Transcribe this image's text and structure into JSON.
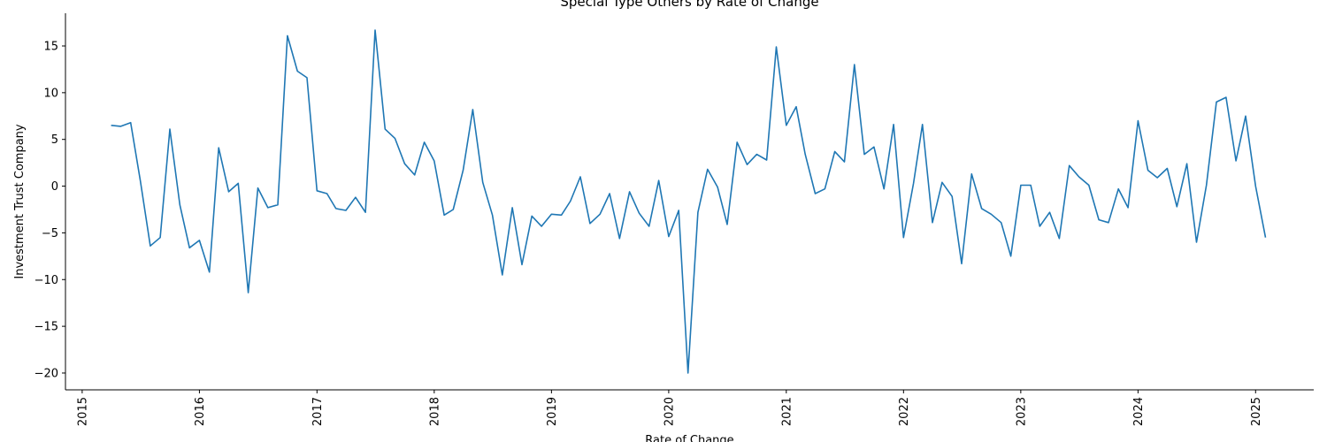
{
  "chart_data": {
    "type": "line",
    "title": "Special Type Others by Rate of Change",
    "xlabel": "Rate of Change",
    "ylabel": "Investment Trust Company",
    "xlim": [
      "2014-11-10",
      "2025-07-01"
    ],
    "ylim": [
      -21.8,
      18.5
    ],
    "x_ticks": [
      "2015",
      "2016",
      "2017",
      "2018",
      "2019",
      "2020",
      "2021",
      "2022",
      "2023",
      "2024",
      "2025"
    ],
    "y_ticks": [
      -20,
      -15,
      -10,
      -5,
      0,
      5,
      10,
      15
    ],
    "y_tick_labels": [
      "−20",
      "−15",
      "−10",
      "−5",
      "0",
      "5",
      "10",
      "15"
    ],
    "grid": false,
    "color": "#1f77b4",
    "series": [
      {
        "x": [
          "2015-04",
          "2015-05",
          "2015-06",
          "2015-07",
          "2015-08",
          "2015-09",
          "2015-10",
          "2015-11",
          "2015-12",
          "2016-01",
          "2016-02",
          "2016-03",
          "2016-04",
          "2016-05",
          "2016-06",
          "2016-07",
          "2016-08",
          "2016-09",
          "2016-10",
          "2016-11",
          "2016-12",
          "2017-01",
          "2017-02",
          "2017-03",
          "2017-04",
          "2017-05",
          "2017-06",
          "2017-07",
          "2017-08",
          "2017-09",
          "2017-10",
          "2017-11",
          "2017-12",
          "2018-01",
          "2018-02",
          "2018-03",
          "2018-04",
          "2018-05",
          "2018-06",
          "2018-07",
          "2018-08",
          "2018-09",
          "2018-10",
          "2018-11",
          "2018-12",
          "2019-01",
          "2019-02",
          "2019-03",
          "2019-04",
          "2019-05",
          "2019-06",
          "2019-07",
          "2019-08",
          "2019-09",
          "2019-10",
          "2019-11",
          "2019-12",
          "2020-01",
          "2020-02",
          "2020-03",
          "2020-04",
          "2020-05",
          "2020-06",
          "2020-07",
          "2020-08",
          "2020-09",
          "2020-10",
          "2020-11",
          "2020-12",
          "2021-01",
          "2021-02",
          "2021-03",
          "2021-04",
          "2021-05",
          "2021-06",
          "2021-07",
          "2021-08",
          "2021-09",
          "2021-10",
          "2021-11",
          "2021-12",
          "2022-01",
          "2022-02",
          "2022-03",
          "2022-04",
          "2022-05",
          "2022-06",
          "2022-07",
          "2022-08",
          "2022-09",
          "2022-10",
          "2022-11",
          "2022-12",
          "2023-01",
          "2023-02",
          "2023-03",
          "2023-04",
          "2023-05",
          "2023-06",
          "2023-07",
          "2023-08",
          "2023-09",
          "2023-10",
          "2023-11",
          "2023-12",
          "2024-01",
          "2024-02",
          "2024-03",
          "2024-04",
          "2024-05",
          "2024-06",
          "2024-07",
          "2024-08",
          "2024-09",
          "2024-10",
          "2024-11",
          "2024-12",
          "2025-01",
          "2025-02"
        ],
        "values": [
          6.5,
          6.4,
          6.8,
          0.6,
          -6.4,
          -5.5,
          6.1,
          -2.0,
          -6.6,
          -5.8,
          -9.2,
          4.1,
          -0.6,
          0.3,
          -11.4,
          -0.2,
          -2.3,
          -2.0,
          16.1,
          12.3,
          11.6,
          -0.5,
          -0.8,
          -2.4,
          -2.6,
          -1.2,
          -2.8,
          16.7,
          6.1,
          5.1,
          2.4,
          1.2,
          4.7,
          2.7,
          -3.1,
          -2.5,
          1.7,
          8.2,
          0.4,
          -3.1,
          -9.5,
          -2.3,
          -8.4,
          -3.2,
          -4.3,
          -3.0,
          -3.1,
          -1.6,
          1.0,
          -4.0,
          -3.0,
          -0.8,
          -5.6,
          -0.6,
          -2.9,
          -4.3,
          0.6,
          -5.4,
          -2.6,
          -20.0,
          -2.8,
          1.8,
          -0.1,
          -4.1,
          4.7,
          2.3,
          3.4,
          2.8,
          14.9,
          6.5,
          8.5,
          3.4,
          -0.8,
          -0.3,
          3.7,
          2.6,
          13.0,
          3.4,
          4.2,
          -0.3,
          6.6,
          -5.5,
          0.3,
          6.6,
          -3.9,
          0.4,
          -1.1,
          -8.3,
          1.3,
          -2.4,
          -3.0,
          -3.9,
          -7.5,
          0.1,
          0.1,
          -4.3,
          -2.8,
          -5.6,
          2.2,
          1.0,
          0.1,
          -3.6,
          -3.9,
          -0.3,
          -2.3,
          7.0,
          1.7,
          0.9,
          1.9,
          -2.2,
          2.4,
          -6.0,
          0.1,
          9.0,
          9.5,
          2.7,
          7.5,
          0.0,
          -5.5
        ]
      }
    ]
  }
}
